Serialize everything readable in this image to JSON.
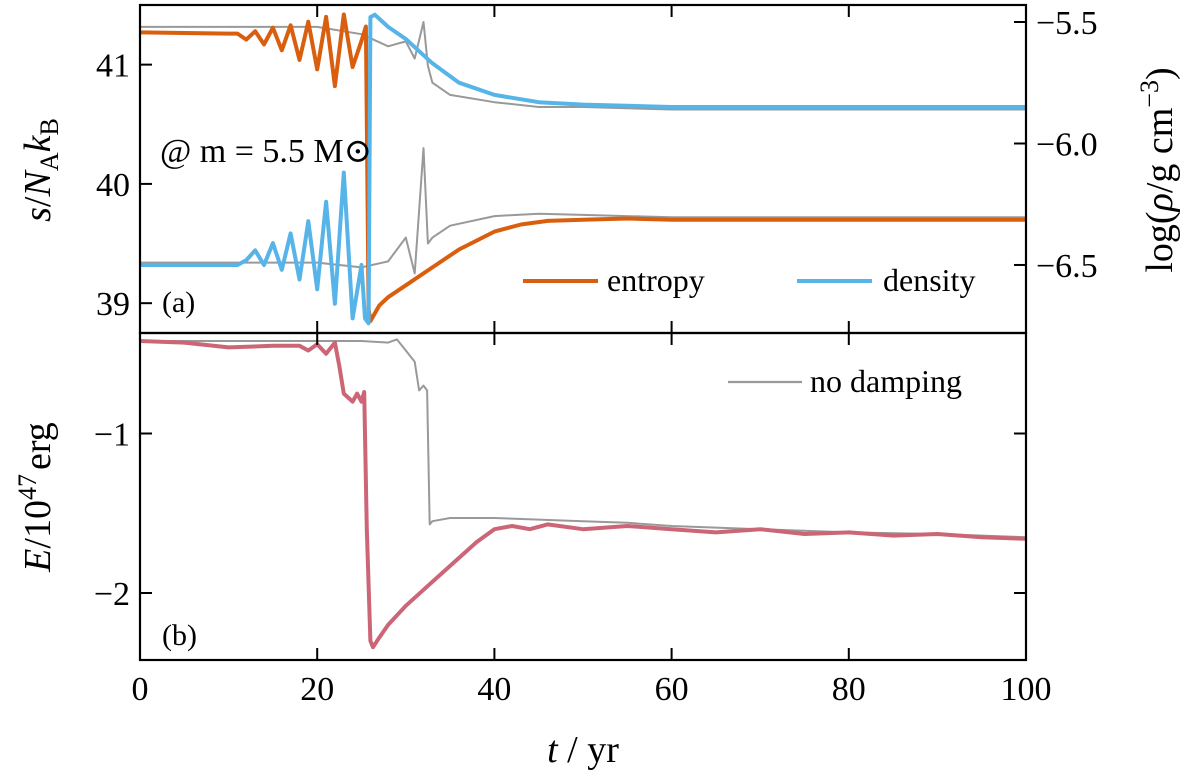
{
  "chart_data": [
    {
      "panel": "(a)",
      "type": "line",
      "annotation": "@ m = 5.5 M⊙",
      "xlim": [
        0,
        100
      ],
      "ylim_left": [
        38.75,
        41.5
      ],
      "ylim_right": [
        -6.78,
        -5.43
      ],
      "ylabel_left_parts": [
        "s",
        "/",
        "N",
        "A",
        "k",
        "B"
      ],
      "ylabel_right_parts": [
        "log(",
        "ρ",
        "/g cm",
        "−3",
        ")"
      ],
      "left_ticks": [
        "39",
        "40",
        "41"
      ],
      "left_tick_values": [
        39,
        40,
        41
      ],
      "right_ticks": [
        "−5.5",
        "−6.0",
        "−6.5"
      ],
      "right_tick_values": [
        -5.5,
        -6.0,
        -6.5
      ],
      "legend": [
        {
          "label": "entropy",
          "color": "#d95f0e"
        },
        {
          "label": "density",
          "color": "#56b4e9"
        }
      ],
      "colors": {
        "entropy": "#d95f0e",
        "density": "#56b4e9",
        "nodamp": "#999999"
      },
      "series": [
        {
          "name": "entropy",
          "axis": "left",
          "x": [
            0,
            10,
            11,
            12,
            13,
            14,
            15,
            16,
            17,
            18,
            19,
            20,
            21,
            22,
            23,
            24,
            25,
            25.5,
            25.8,
            26,
            27,
            28,
            30,
            33,
            36,
            40,
            43,
            46,
            50,
            55,
            60,
            70,
            80,
            90,
            100
          ],
          "y": [
            41.27,
            41.26,
            41.26,
            41.21,
            41.28,
            41.17,
            41.31,
            41.12,
            41.33,
            41.04,
            41.36,
            40.96,
            41.4,
            40.82,
            41.42,
            40.98,
            41.2,
            41.32,
            38.95,
            38.85,
            38.98,
            39.05,
            39.15,
            39.3,
            39.45,
            39.6,
            39.66,
            39.69,
            39.7,
            39.71,
            39.7,
            39.7,
            39.7,
            39.7,
            39.7
          ]
        },
        {
          "name": "density",
          "axis": "right",
          "x": [
            0,
            10,
            11,
            12,
            13,
            14,
            15,
            16,
            17,
            18,
            19,
            20,
            21,
            22,
            23,
            24,
            25,
            25.4,
            25.8,
            26,
            26.5,
            28,
            30,
            33,
            36,
            40,
            45,
            50,
            60,
            70,
            80,
            90,
            100
          ],
          "y": [
            -6.5,
            -6.5,
            -6.5,
            -6.48,
            -6.44,
            -6.5,
            -6.41,
            -6.52,
            -6.37,
            -6.56,
            -6.32,
            -6.6,
            -6.24,
            -6.66,
            -6.12,
            -6.72,
            -6.5,
            -6.72,
            -6.74,
            -5.48,
            -5.47,
            -5.52,
            -5.57,
            -5.67,
            -5.75,
            -5.8,
            -5.83,
            -5.84,
            -5.85,
            -5.85,
            -5.85,
            -5.85,
            -5.85
          ]
        }
      ],
      "nodamp_series": [
        {
          "axis": "left",
          "x": [
            0,
            10,
            15,
            20,
            25,
            28,
            30,
            31,
            32,
            32.5,
            33,
            35,
            40,
            45,
            50,
            60,
            70,
            80,
            90,
            100
          ],
          "y": [
            39.34,
            39.34,
            39.34,
            39.34,
            39.3,
            39.35,
            39.55,
            39.25,
            40.3,
            39.5,
            39.55,
            39.65,
            39.73,
            39.75,
            39.74,
            39.72,
            39.72,
            39.72,
            39.72,
            39.72
          ]
        },
        {
          "axis": "right",
          "x": [
            0,
            10,
            15,
            20,
            25,
            28,
            30,
            31,
            32,
            32.5,
            33,
            35,
            40,
            45,
            50,
            60,
            70,
            80,
            90,
            100
          ],
          "y": [
            -5.52,
            -5.52,
            -5.52,
            -5.52,
            -5.55,
            -5.6,
            -5.58,
            -5.65,
            -5.5,
            -5.68,
            -5.75,
            -5.8,
            -5.83,
            -5.85,
            -5.85,
            -5.86,
            -5.86,
            -5.86,
            -5.86,
            -5.86
          ]
        }
      ]
    },
    {
      "panel": "(b)",
      "type": "line",
      "xlim": [
        0,
        100
      ],
      "ylim": [
        -2.42,
        -0.37
      ],
      "xlabel_parts": [
        "t",
        " / yr"
      ],
      "ylabel_parts": [
        "E",
        "/10",
        "47",
        "erg"
      ],
      "x_ticks": [
        "0",
        "20",
        "40",
        "60",
        "80",
        "100"
      ],
      "x_tick_values": [
        0,
        20,
        40,
        60,
        80,
        100
      ],
      "y_ticks": [
        "−1",
        "−2"
      ],
      "y_tick_values": [
        -1,
        -2
      ],
      "legend": [
        {
          "label": "no damping",
          "color": "#999999"
        }
      ],
      "series": [
        {
          "name": "energy",
          "color": "#cc6677",
          "x": [
            0,
            5,
            10,
            15,
            18,
            19,
            20,
            21,
            22,
            22.5,
            23,
            24,
            24.5,
            25,
            25.3,
            25.6,
            26,
            26.3,
            27,
            28,
            30,
            32,
            34,
            36,
            38,
            40,
            42,
            44,
            46,
            50,
            55,
            60,
            65,
            70,
            75,
            80,
            85,
            90,
            95,
            100
          ],
          "y": [
            -0.42,
            -0.43,
            -0.46,
            -0.45,
            -0.45,
            -0.48,
            -0.44,
            -0.5,
            -0.43,
            -0.58,
            -0.75,
            -0.8,
            -0.75,
            -0.8,
            -0.74,
            -1.6,
            -2.3,
            -2.34,
            -2.28,
            -2.2,
            -2.08,
            -1.98,
            -1.88,
            -1.78,
            -1.68,
            -1.6,
            -1.58,
            -1.6,
            -1.57,
            -1.6,
            -1.58,
            -1.6,
            -1.62,
            -1.6,
            -1.63,
            -1.62,
            -1.64,
            -1.63,
            -1.65,
            -1.66
          ]
        },
        {
          "name": "no damping",
          "color": "#999999",
          "x": [
            0,
            10,
            20,
            25,
            28,
            29,
            30,
            31,
            31.5,
            32,
            32.4,
            32.7,
            33,
            35,
            40,
            45,
            50,
            55,
            60,
            70,
            80,
            90,
            100
          ],
          "y": [
            -0.42,
            -0.42,
            -0.42,
            -0.42,
            -0.43,
            -0.41,
            -0.48,
            -0.55,
            -0.73,
            -0.7,
            -0.73,
            -1.57,
            -1.55,
            -1.53,
            -1.53,
            -1.54,
            -1.55,
            -1.56,
            -1.58,
            -1.6,
            -1.62,
            -1.63,
            -1.65
          ]
        }
      ]
    }
  ]
}
